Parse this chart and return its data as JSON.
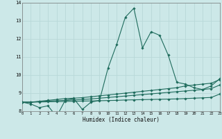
{
  "title": "",
  "xlabel": "Humidex (Indice chaleur)",
  "bg_color": "#cce8e8",
  "grid_color": "#b8d8d8",
  "line_color": "#1e6b5c",
  "x_data": [
    0,
    1,
    2,
    3,
    4,
    5,
    6,
    7,
    8,
    9,
    10,
    11,
    12,
    13,
    14,
    15,
    16,
    17,
    18,
    19,
    20,
    21,
    22,
    23
  ],
  "series1": [
    8.5,
    8.4,
    8.2,
    8.3,
    7.7,
    8.6,
    8.7,
    8.1,
    8.5,
    8.6,
    10.4,
    11.7,
    13.2,
    13.7,
    11.5,
    12.4,
    12.2,
    11.1,
    9.6,
    9.5,
    9.3,
    9.2,
    9.4,
    9.8
  ],
  "series2": [
    8.5,
    8.5,
    8.55,
    8.6,
    8.65,
    8.7,
    8.72,
    8.75,
    8.8,
    8.85,
    8.9,
    8.95,
    9.0,
    9.05,
    9.1,
    9.15,
    9.2,
    9.25,
    9.3,
    9.4,
    9.45,
    9.5,
    9.55,
    9.75
  ],
  "series3": [
    8.5,
    8.5,
    8.53,
    8.56,
    8.58,
    8.6,
    8.62,
    8.65,
    8.68,
    8.72,
    8.76,
    8.8,
    8.84,
    8.88,
    8.92,
    8.96,
    9.0,
    9.04,
    9.08,
    9.12,
    9.16,
    9.2,
    9.25,
    9.45
  ],
  "series4": [
    8.5,
    8.5,
    8.51,
    8.52,
    8.53,
    8.54,
    8.55,
    8.56,
    8.57,
    8.58,
    8.59,
    8.6,
    8.62,
    8.63,
    8.64,
    8.65,
    8.66,
    8.67,
    8.68,
    8.7,
    8.72,
    8.74,
    8.76,
    8.95
  ],
  "ylim": [
    8,
    14
  ],
  "xlim": [
    0,
    23
  ],
  "yticks": [
    8,
    9,
    10,
    11,
    12,
    13,
    14
  ],
  "xticks": [
    0,
    1,
    2,
    3,
    4,
    5,
    6,
    7,
    8,
    9,
    10,
    11,
    12,
    13,
    14,
    15,
    16,
    17,
    18,
    19,
    20,
    21,
    22,
    23
  ]
}
